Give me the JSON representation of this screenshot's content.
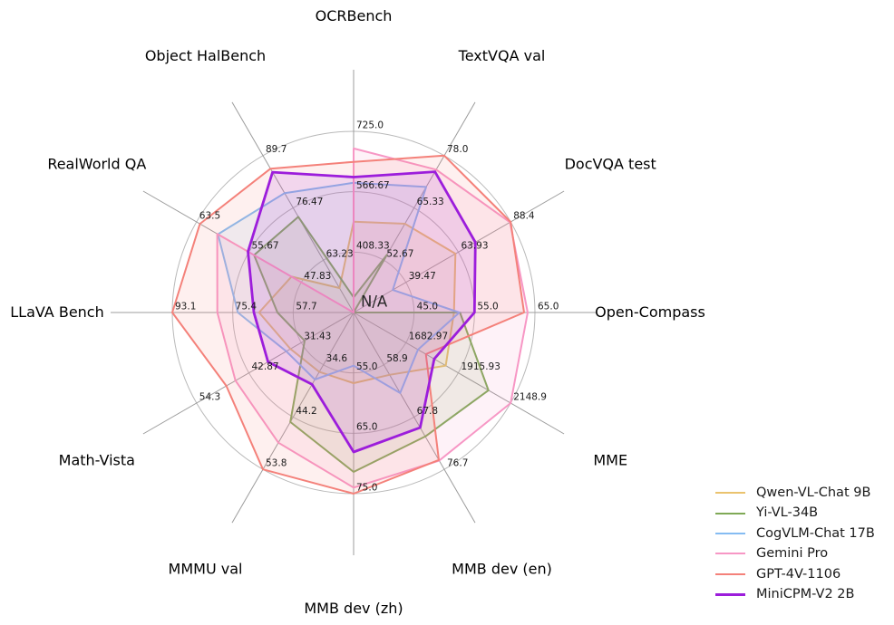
{
  "chart_data": {
    "type": "radar",
    "center_label": "N/A",
    "style": {
      "background": "#ffffff",
      "ring_color": "#b9b9b9",
      "spoke_color": "#9c9c9c",
      "tick_text_color": "#1a1a1a",
      "title_text_color": "#000000",
      "fill_alpha": 0.12
    },
    "axes": [
      {
        "label": "OCRBench",
        "min": 250.0,
        "ticks": [
          "408.33",
          "566.67",
          "725.0"
        ]
      },
      {
        "label": "TextVQA val",
        "min": 40.0,
        "ticks": [
          "52.67",
          "65.33",
          "78.0"
        ]
      },
      {
        "label": "DocVQA test",
        "min": 15.0,
        "ticks": [
          "39.47",
          "63.93",
          "88.4"
        ]
      },
      {
        "label": "Open-Compass",
        "min": 35.0,
        "ticks": [
          "45.0",
          "55.0",
          "65.0"
        ]
      },
      {
        "label": "MME",
        "min": 1450.0,
        "ticks": [
          "1682.97",
          "1915.93",
          "2148.9"
        ]
      },
      {
        "label": "MMB dev (en)",
        "min": 50.0,
        "ticks": [
          "58.9",
          "67.8",
          "76.7"
        ]
      },
      {
        "label": "MMB dev (zh)",
        "min": 45.0,
        "ticks": [
          "55.0",
          "65.0",
          "75.0"
        ]
      },
      {
        "label": "MMMU val",
        "min": 25.0,
        "ticks": [
          "34.6",
          "44.2",
          "53.8"
        ]
      },
      {
        "label": "Math-Vista",
        "min": 20.0,
        "ticks": [
          "31.43",
          "42.87",
          "54.3"
        ]
      },
      {
        "label": "LLaVA Bench",
        "min": 40.0,
        "ticks": [
          "57.7",
          "75.4",
          "93.1"
        ]
      },
      {
        "label": "RealWorld QA",
        "min": 40.0,
        "ticks": [
          "47.83",
          "55.67",
          "63.5"
        ]
      },
      {
        "label": "Object HalBench",
        "min": 50.0,
        "ticks": [
          "63.23",
          "76.47",
          "89.7"
        ]
      }
    ],
    "series": [
      {
        "name": "Qwen-VL-Chat 9B",
        "color": "#eac36e",
        "line_width": 2,
        "values": [
          488,
          61.5,
          62.6,
          51.6,
          1860.0,
          60.6,
          56.7,
          35.9,
          33.8,
          67.7,
          49.3,
          56.2
        ]
      },
      {
        "name": "Yi-VL-34B",
        "color": "#7fa956",
        "line_width": 2,
        "values": [
          290,
          54.0,
          null,
          52.6,
          2050.2,
          71.1,
          71.4,
          45.1,
          30.7,
          62.3,
          54.9,
          74.2
        ]
      },
      {
        "name": "CogVLM-Chat 17B",
        "color": "#85bcf2",
        "line_width": 2,
        "values": [
          590,
          70.4,
          33.3,
          52.5,
          1736.6,
          63.7,
          53.8,
          37.3,
          34.7,
          73.9,
          60.3,
          80.2
        ]
      },
      {
        "name": "Gemini Pro",
        "color": "#f797c5",
        "line_width": 2,
        "values": [
          680,
          74.6,
          88.1,
          63.8,
          2148.9,
          75.2,
          74.0,
          48.9,
          45.8,
          79.9,
          60.4,
          null
        ]
      },
      {
        "name": "GPT-4V-1106",
        "color": "#f4817a",
        "line_width": 2,
        "values": [
          645,
          78.0,
          88.4,
          63.2,
          1771.5,
          75.1,
          75.0,
          53.8,
          47.8,
          93.1,
          63.0,
          86.4
        ]
      },
      {
        "name": "MiniCPM-V2 2B",
        "color": "#9c1ddb",
        "line_width": 2.8,
        "values": [
          605,
          74.1,
          71.9,
          55.0,
          1808.6,
          69.6,
          68.1,
          38.2,
          38.7,
          69.2,
          55.8,
          85.5
        ]
      }
    ],
    "legend_position": "lower-right"
  }
}
